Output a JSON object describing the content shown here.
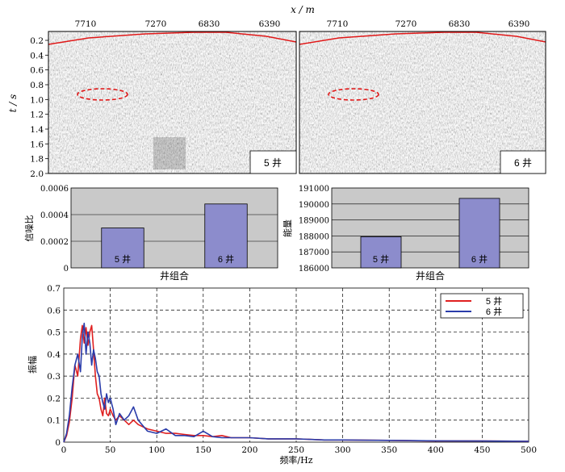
{
  "chart_data": [
    {
      "type": "heatmap",
      "panel": "seismic-section",
      "xlabel": "x / m",
      "ylabel": "t / s",
      "x_ticks": [
        "7710",
        "7270",
        "6830",
        "6390"
      ],
      "y_ticks": [
        "0.2",
        "0.4",
        "0.6",
        "0.8",
        "1.0",
        "1.2",
        "1.4",
        "1.6",
        "1.8",
        "2.0"
      ],
      "ylim": [
        0.08,
        2.0
      ],
      "labels": [
        "5 井",
        "6 井"
      ],
      "annotation": "red dashed ellipse near t≈0.9 s; red line along surface"
    },
    {
      "type": "bar",
      "categories": [
        "5 井",
        "6 井"
      ],
      "values": [
        0.0003,
        0.00048
      ],
      "xlabel": "井组合",
      "ylabel": "信噪比",
      "ylim": [
        0,
        0.0006
      ],
      "y_ticks": [
        "0",
        "0.0002",
        "0.0004",
        "0.0006"
      ],
      "color": "#8c8ccc",
      "grid": true
    },
    {
      "type": "bar",
      "categories": [
        "5 井",
        "6 井"
      ],
      "values": [
        187950,
        190350
      ],
      "xlabel": "井组合",
      "ylabel": "能量",
      "ylim": [
        186000,
        191000
      ],
      "y_ticks": [
        "186000",
        "187000",
        "188000",
        "189000",
        "190000",
        "191000"
      ],
      "color": "#8c8ccc",
      "grid": true
    },
    {
      "type": "line",
      "xlabel": "频率/Hz",
      "ylabel": "振幅",
      "xlim": [
        0,
        500
      ],
      "ylim": [
        0,
        0.7
      ],
      "x_ticks": [
        "0",
        "50",
        "100",
        "150",
        "200",
        "250",
        "300",
        "350",
        "400",
        "450",
        "500"
      ],
      "y_ticks": [
        "0",
        "0.1",
        "0.2",
        "0.3",
        "0.4",
        "0.5",
        "0.6",
        "0.7"
      ],
      "legend": "top-right",
      "grid": true,
      "series": [
        {
          "name": "5 井",
          "color": "#e02020",
          "x": [
            0,
            3,
            6,
            9,
            12,
            15,
            18,
            20,
            22,
            24,
            26,
            28,
            30,
            32,
            34,
            36,
            38,
            40,
            42,
            44,
            46,
            48,
            50,
            53,
            56,
            60,
            65,
            70,
            75,
            80,
            90,
            100,
            110,
            120,
            130,
            140,
            150,
            160,
            170,
            180,
            200,
            220,
            250,
            280,
            300,
            350,
            400,
            450,
            500
          ],
          "y": [
            0,
            0.03,
            0.09,
            0.2,
            0.35,
            0.3,
            0.47,
            0.53,
            0.45,
            0.52,
            0.44,
            0.5,
            0.53,
            0.42,
            0.3,
            0.22,
            0.2,
            0.15,
            0.12,
            0.2,
            0.13,
            0.12,
            0.15,
            0.12,
            0.1,
            0.12,
            0.1,
            0.08,
            0.1,
            0.08,
            0.06,
            0.05,
            0.04,
            0.04,
            0.035,
            0.03,
            0.03,
            0.025,
            0.03,
            0.02,
            0.02,
            0.015,
            0.015,
            0.01,
            0.01,
            0.008,
            0.005,
            0.005,
            0.004
          ]
        },
        {
          "name": "6 井",
          "color": "#2a3caa",
          "x": [
            0,
            3,
            6,
            9,
            12,
            15,
            18,
            20,
            22,
            24,
            26,
            28,
            30,
            32,
            34,
            36,
            38,
            40,
            42,
            44,
            46,
            48,
            50,
            53,
            56,
            60,
            65,
            70,
            75,
            80,
            90,
            100,
            110,
            120,
            130,
            140,
            150,
            160,
            170,
            180,
            200,
            220,
            250,
            280,
            300,
            350,
            400,
            450,
            500
          ],
          "y": [
            0,
            0.04,
            0.12,
            0.25,
            0.35,
            0.4,
            0.32,
            0.48,
            0.54,
            0.4,
            0.5,
            0.45,
            0.35,
            0.42,
            0.38,
            0.32,
            0.3,
            0.22,
            0.18,
            0.15,
            0.22,
            0.18,
            0.2,
            0.15,
            0.08,
            0.13,
            0.1,
            0.12,
            0.16,
            0.1,
            0.05,
            0.04,
            0.06,
            0.03,
            0.03,
            0.025,
            0.05,
            0.025,
            0.02,
            0.02,
            0.02,
            0.015,
            0.015,
            0.01,
            0.01,
            0.008,
            0.006,
            0.005,
            0.004
          ]
        }
      ]
    }
  ]
}
